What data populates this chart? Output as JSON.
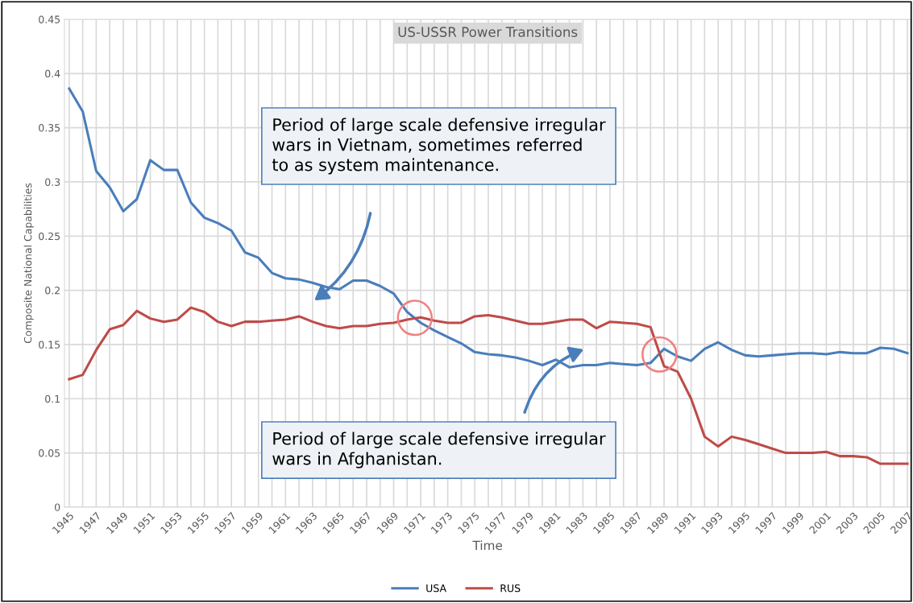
{
  "chart_data": {
    "type": "line",
    "title": "US-USSR Power Transitions",
    "xlabel": "Time",
    "ylabel": "Composite National Capabilities",
    "categories": [
      "1945",
      null,
      "1947",
      null,
      "1949",
      null,
      "1951",
      null,
      "1953",
      null,
      "1955",
      null,
      "1957",
      null,
      "1959",
      null,
      "1961",
      null,
      "1963",
      null,
      "1965",
      null,
      "1967",
      null,
      "1969",
      null,
      "1971",
      null,
      "1973",
      null,
      "1975",
      null,
      "1977",
      null,
      "1979",
      null,
      "1981",
      null,
      "1983",
      null,
      "1985",
      null,
      "1987",
      null,
      "1989",
      null,
      "1991",
      null,
      "1993",
      null,
      "1995",
      null,
      "1997",
      null,
      "1999",
      null,
      "2001",
      null,
      "2003",
      null,
      "2005",
      null,
      "2007"
    ],
    "series": [
      {
        "name": "USA",
        "color": "#4a7ebb",
        "values": [
          0.386,
          0.365,
          0.31,
          0.295,
          0.273,
          0.284,
          0.32,
          0.311,
          0.311,
          0.281,
          0.267,
          0.262,
          0.255,
          0.235,
          0.23,
          0.216,
          0.211,
          0.21,
          0.207,
          0.203,
          0.201,
          0.209,
          0.209,
          0.204,
          0.197,
          0.18,
          0.17,
          0.163,
          0.157,
          0.151,
          0.143,
          0.141,
          0.14,
          0.138,
          0.135,
          0.131,
          0.136,
          0.129,
          0.131,
          0.131,
          0.133,
          0.132,
          0.131,
          0.133,
          0.146,
          0.139,
          0.135,
          0.146,
          0.152,
          0.145,
          0.14,
          0.139,
          0.14,
          0.141,
          0.142,
          0.142,
          0.141,
          0.143,
          0.142,
          0.142,
          0.147,
          0.146,
          0.142
        ]
      },
      {
        "name": "RUS",
        "color": "#be4b48",
        "values": [
          0.118,
          0.122,
          0.145,
          0.164,
          0.168,
          0.181,
          0.174,
          0.171,
          0.173,
          0.184,
          0.18,
          0.171,
          0.167,
          0.171,
          0.171,
          0.172,
          0.173,
          0.176,
          0.171,
          0.167,
          0.165,
          0.167,
          0.167,
          0.169,
          0.17,
          0.173,
          0.175,
          0.172,
          0.17,
          0.17,
          0.176,
          0.177,
          0.175,
          0.172,
          0.169,
          0.169,
          0.171,
          0.173,
          0.173,
          0.165,
          0.171,
          0.17,
          0.169,
          0.166,
          0.13,
          0.125,
          0.1,
          0.065,
          0.056,
          0.065,
          0.062,
          0.058,
          0.054,
          0.05,
          0.05,
          0.05,
          0.051,
          0.047,
          0.047,
          0.046,
          0.04,
          0.04,
          0.04
        ]
      }
    ],
    "ylim": [
      0,
      0.45
    ],
    "yticks": [
      0,
      0.05,
      0.1,
      0.15,
      0.2,
      0.25,
      0.3,
      0.35,
      0.4,
      0.45
    ],
    "grid": true,
    "legend": "bottom",
    "line_style": "solid",
    "marker": "none",
    "annotations": [
      "Period of large scale defensive irregular\nwars in Vietnam, sometimes referred\nto as system maintenance.",
      "Period of large scale defensive irregular\nwars in Afghanistan."
    ]
  }
}
